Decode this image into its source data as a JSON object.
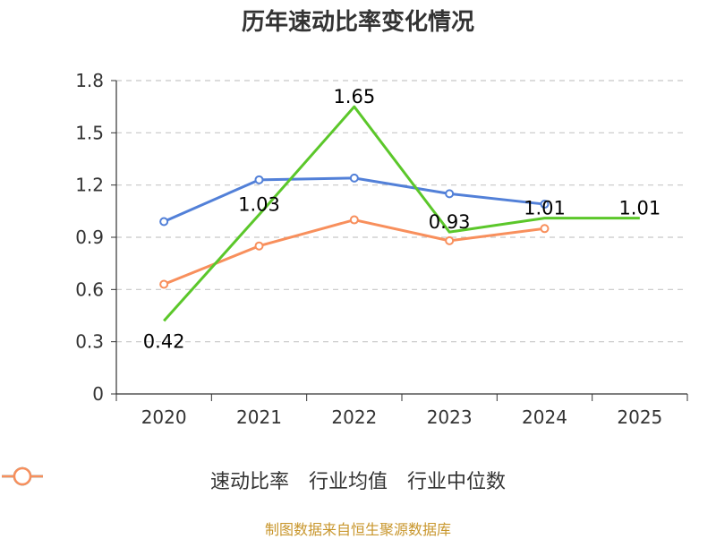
{
  "chart_data": {
    "type": "line",
    "title": "历年速动比率变化情况",
    "categories": [
      "2020",
      "2021",
      "2022",
      "2023",
      "2024",
      "2025"
    ],
    "ylim": [
      0,
      1.8
    ],
    "yticks": [
      "0",
      "0.3",
      "0.6",
      "0.9",
      "1.2",
      "1.5",
      "1.8"
    ],
    "grid": true,
    "legend_position": "bottom",
    "series": [
      {
        "name": "速动比率",
        "color": "#5bc72a",
        "values": [
          0.42,
          1.03,
          1.65,
          0.93,
          1.01,
          1.01
        ],
        "labels": [
          "0.42",
          "1.03",
          "1.65",
          "0.93",
          "1.01",
          "1.01"
        ],
        "show_labels": true
      },
      {
        "name": "行业均值",
        "color": "#5280d8",
        "values": [
          0.99,
          1.23,
          1.24,
          1.15,
          1.09,
          null
        ],
        "show_labels": false
      },
      {
        "name": "行业中位数",
        "color": "#f88f5c",
        "values": [
          0.63,
          0.85,
          1.0,
          0.88,
          0.95,
          null
        ],
        "show_labels": false
      }
    ]
  },
  "source": "制图数据来自恒生聚源数据库"
}
